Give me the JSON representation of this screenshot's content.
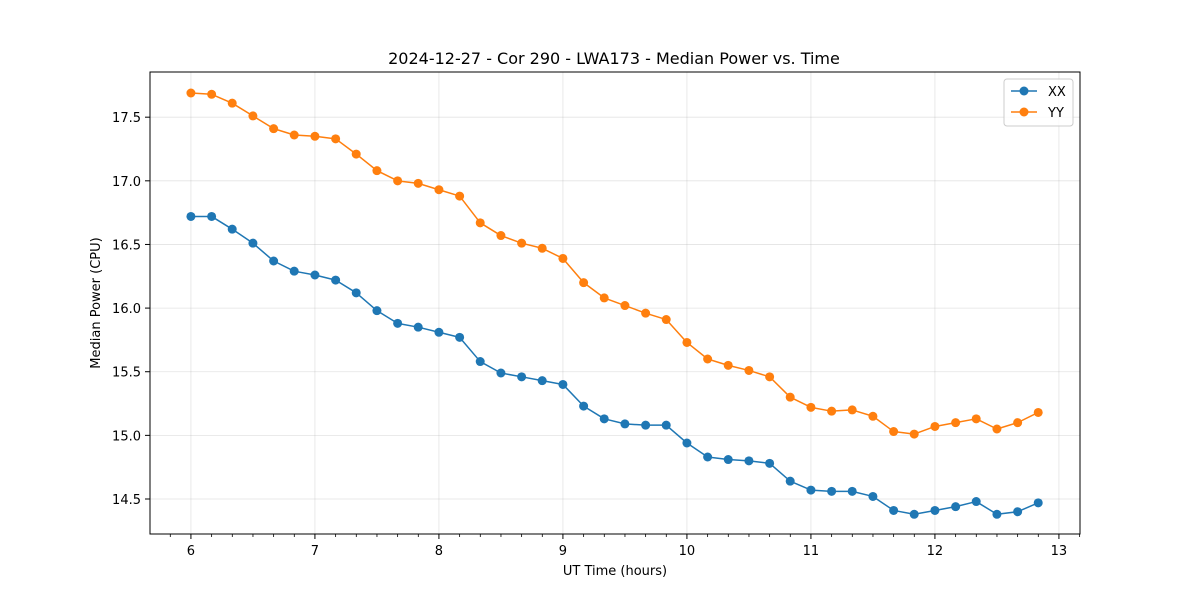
{
  "chart_data": {
    "type": "line",
    "title": "2024-12-27 - Cor 290 - LWA173 - Median Power vs. Time",
    "xlabel": "UT Time (hours)",
    "ylabel": "Median Power (CPU)",
    "xlim": [
      5.67,
      13.17
    ],
    "ylim": [
      14.225,
      17.855
    ],
    "xticks": [
      6,
      7,
      8,
      9,
      10,
      11,
      12,
      13
    ],
    "yticks": [
      14.5,
      15.0,
      15.5,
      16.0,
      16.5,
      17.0,
      17.5
    ],
    "ytick_labels": [
      "14.5",
      "15.0",
      "15.5",
      "16.0",
      "16.5",
      "17.0",
      "17.5"
    ],
    "grid": true,
    "legend_position": "top-right",
    "x": [
      6.0,
      6.167,
      6.333,
      6.5,
      6.667,
      6.833,
      7.0,
      7.167,
      7.333,
      7.5,
      7.667,
      7.833,
      8.0,
      8.167,
      8.333,
      8.5,
      8.667,
      8.833,
      9.0,
      9.167,
      9.333,
      9.5,
      9.667,
      9.833,
      10.0,
      10.167,
      10.333,
      10.5,
      10.667,
      10.833,
      11.0,
      11.167,
      11.333,
      11.5,
      11.667,
      11.833,
      12.0,
      12.167,
      12.333,
      12.5,
      12.667,
      12.833
    ],
    "series": [
      {
        "name": "XX",
        "color": "#1f77b4",
        "values": [
          16.72,
          16.72,
          16.62,
          16.51,
          16.37,
          16.29,
          16.26,
          16.22,
          16.12,
          15.98,
          15.88,
          15.85,
          15.81,
          15.77,
          15.58,
          15.49,
          15.46,
          15.43,
          15.4,
          15.23,
          15.13,
          15.09,
          15.08,
          15.08,
          14.94,
          14.83,
          14.81,
          14.8,
          14.78,
          14.64,
          14.57,
          14.56,
          14.56,
          14.52,
          14.41,
          14.38,
          14.41,
          14.44,
          14.48,
          14.38,
          14.4,
          14.47
        ]
      },
      {
        "name": "YY",
        "color": "#ff7f0e",
        "values": [
          17.69,
          17.68,
          17.61,
          17.51,
          17.41,
          17.36,
          17.35,
          17.33,
          17.21,
          17.08,
          17.0,
          16.98,
          16.93,
          16.88,
          16.67,
          16.57,
          16.51,
          16.47,
          16.39,
          16.2,
          16.08,
          16.02,
          15.96,
          15.91,
          15.73,
          15.6,
          15.55,
          15.51,
          15.46,
          15.3,
          15.22,
          15.19,
          15.2,
          15.15,
          15.03,
          15.01,
          15.07,
          15.1,
          15.13,
          15.05,
          15.1,
          15.18
        ]
      }
    ]
  }
}
